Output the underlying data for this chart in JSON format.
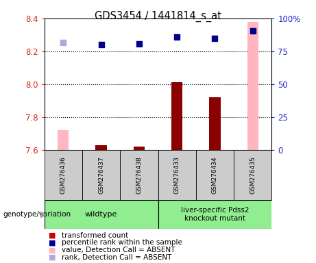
{
  "title": "GDS3454 / 1441814_s_at",
  "samples": [
    "GSM276436",
    "GSM276437",
    "GSM276438",
    "GSM276433",
    "GSM276434",
    "GSM276435"
  ],
  "x_positions": [
    0,
    1,
    2,
    3,
    4,
    5
  ],
  "bar_values": [
    7.72,
    7.63,
    7.62,
    8.01,
    7.92,
    8.38
  ],
  "bar_absent": [
    true,
    false,
    false,
    false,
    false,
    true
  ],
  "bar_color_present": "#8B0000",
  "bar_color_absent": "#FFB6C1",
  "dot_values_left": [
    8.255,
    8.24,
    8.245,
    8.285,
    8.28,
    8.325
  ],
  "dot_absent": [
    true,
    false,
    false,
    false,
    false,
    false
  ],
  "dot_color_present": "#00008B",
  "dot_color_absent": "#AAAADD",
  "ylim_left": [
    7.6,
    8.4
  ],
  "ylim_right": [
    0,
    100
  ],
  "yticks_left": [
    7.6,
    7.8,
    8.0,
    8.2,
    8.4
  ],
  "yticks_right": [
    0,
    25,
    50,
    75,
    100
  ],
  "ytick_labels_right": [
    "0",
    "25",
    "50",
    "75",
    "100%"
  ],
  "hlines": [
    7.8,
    8.0,
    8.2
  ],
  "group1_label": "wildtype",
  "group2_label": "liver-specific Pdss2\nknockout mutant",
  "group1_color": "#90EE90",
  "group2_color": "#90EE90",
  "genotype_label": "genotype/variation",
  "legend_items": [
    {
      "label": "transformed count",
      "color": "#CC0000"
    },
    {
      "label": "percentile rank within the sample",
      "color": "#000099"
    },
    {
      "label": "value, Detection Call = ABSENT",
      "color": "#FFB6C1"
    },
    {
      "label": "rank, Detection Call = ABSENT",
      "color": "#AAAADD"
    }
  ],
  "bar_width": 0.3,
  "dot_size": 40,
  "ylabel_left_color": "#DD2222",
  "ylabel_right_color": "#2222CC",
  "sample_box_color": "#CCCCCC",
  "figure_width": 4.61,
  "figure_height": 3.84,
  "figure_dpi": 100
}
